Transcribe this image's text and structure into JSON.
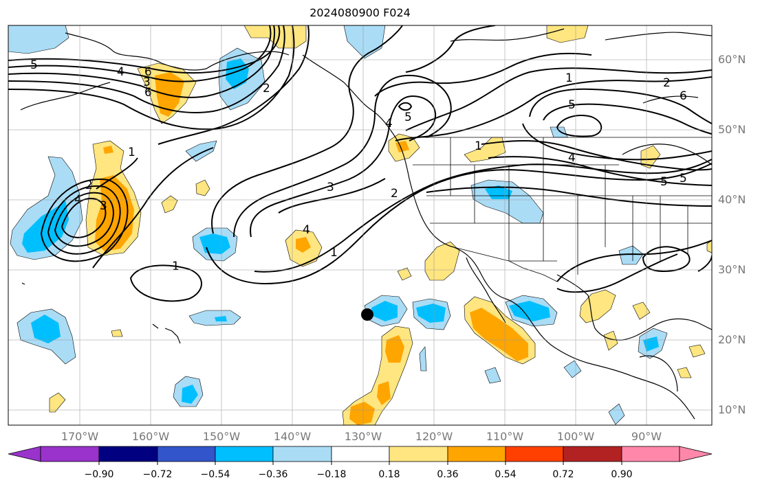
{
  "title": "2024080900 F024",
  "lat_labels": [
    "60°N",
    "50°N",
    "40°N",
    "30°N",
    "20°N",
    "10°N"
  ],
  "lon_labels": [
    "170°W",
    "160°W",
    "150°W",
    "140°W",
    "130°W",
    "120°W",
    "110°W",
    "100°W",
    "90°W"
  ],
  "colorbar": {
    "ticks": [
      "−0.90",
      "−0.72",
      "−0.54",
      "−0.36",
      "−0.18",
      "0.18",
      "0.36",
      "0.54",
      "0.72",
      "0.90"
    ],
    "colors": [
      "#9933cc",
      "#000080",
      "#3355cc",
      "#00bfff",
      "#aadcf6",
      "#ffffff",
      "#ffe680",
      "#ffa500",
      "#ff4000",
      "#b22222",
      "#ff88aa"
    ]
  },
  "contour_labels": [
    "5",
    "4",
    "6",
    "3",
    "2",
    "1",
    "1",
    "2",
    "3",
    "4",
    "1",
    "2",
    "3",
    "4",
    "1",
    "5",
    "4",
    "5",
    "6",
    "1",
    "2",
    "6",
    "5",
    "4",
    "5"
  ],
  "marker": "storm-center-dot"
}
